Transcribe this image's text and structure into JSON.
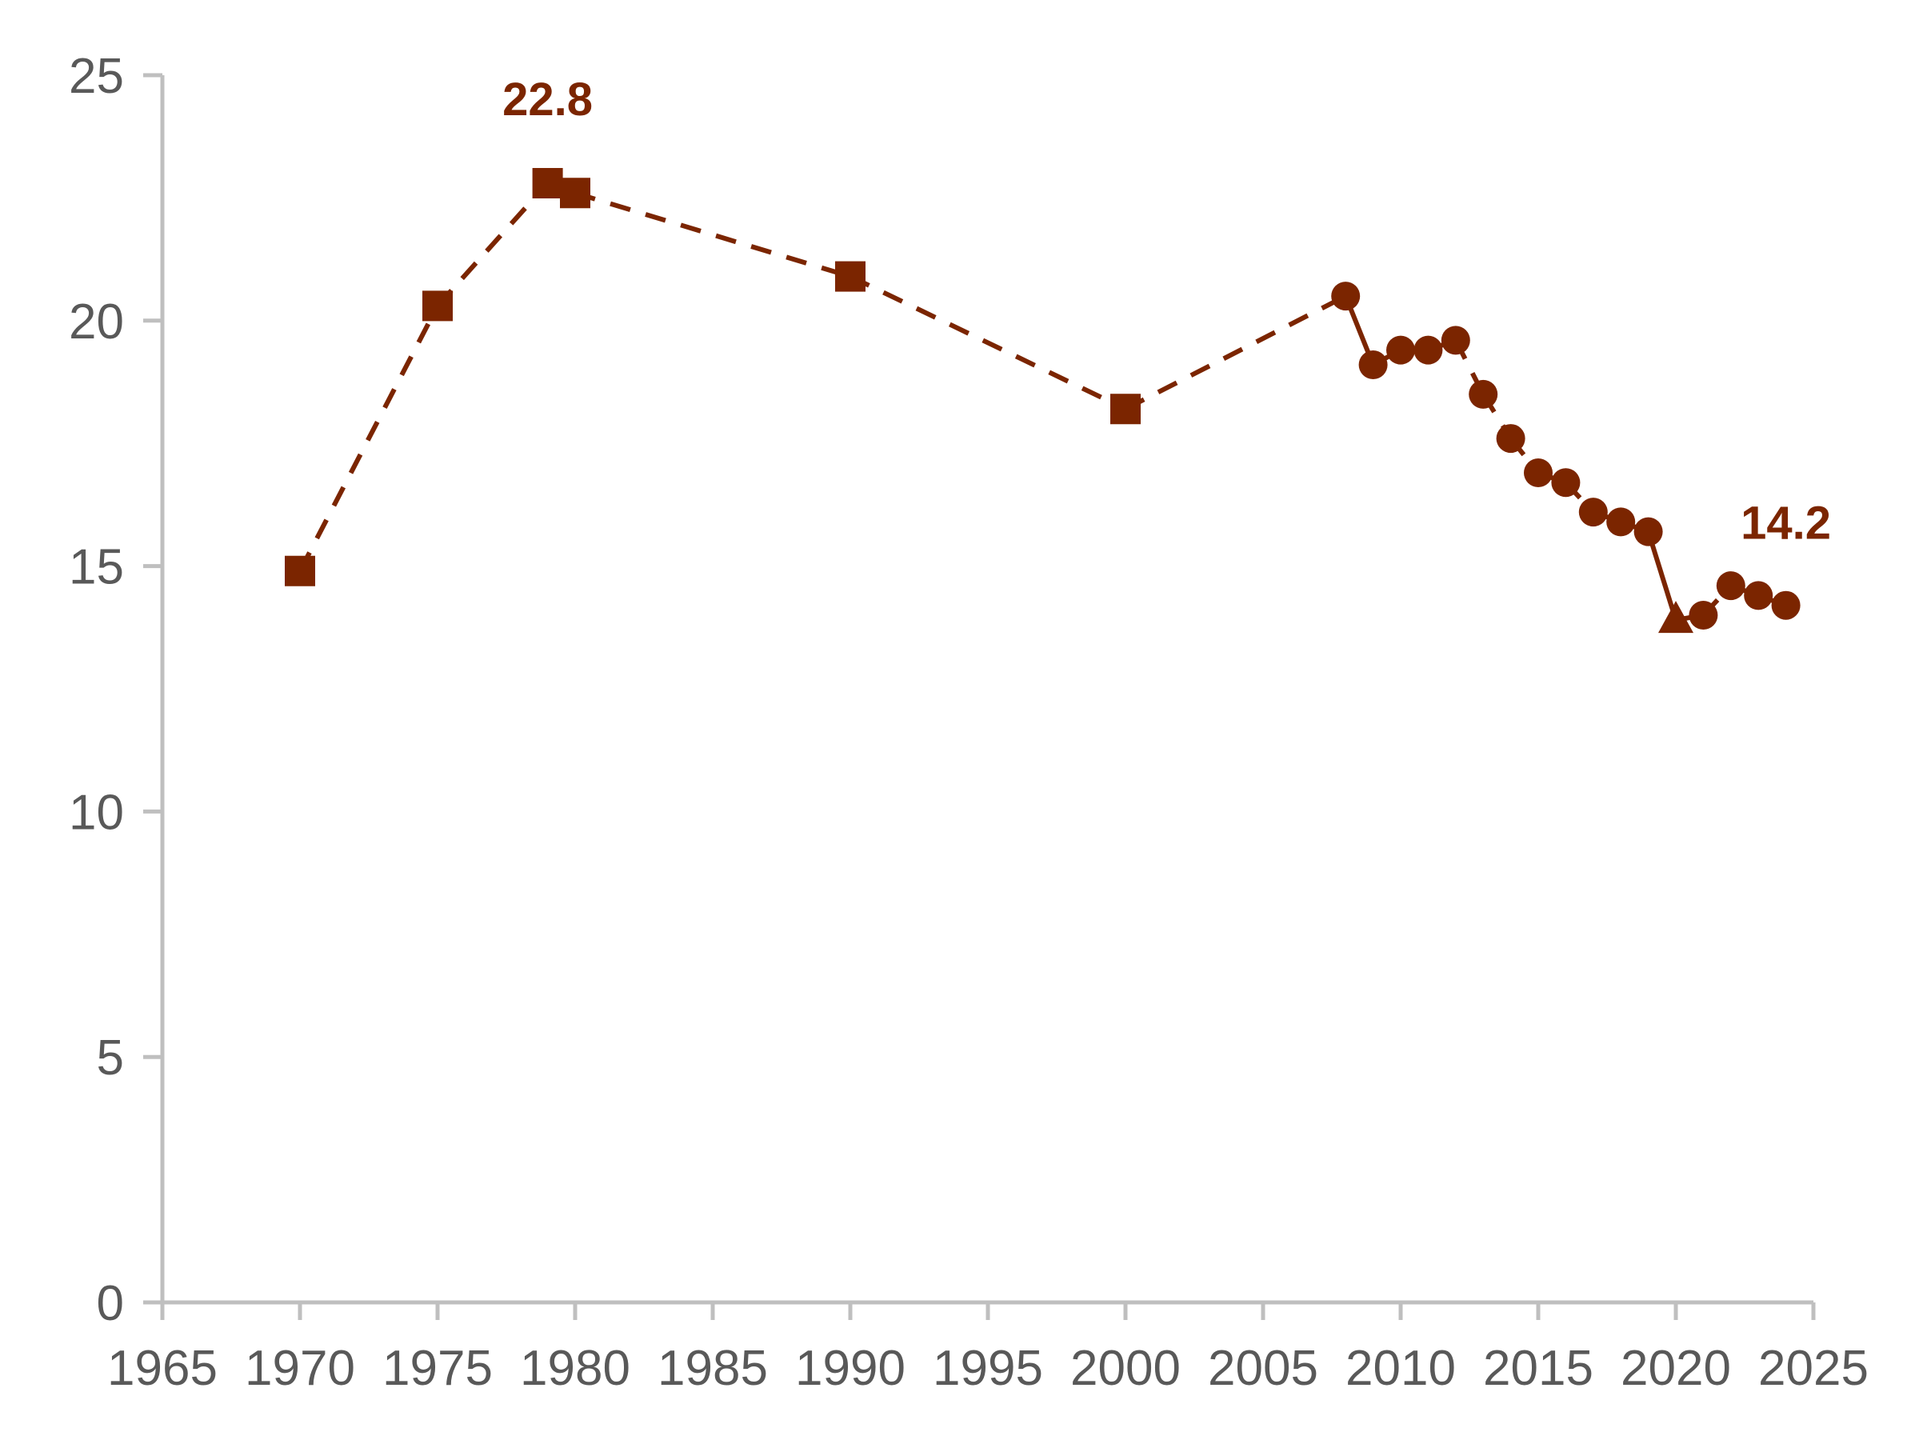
{
  "chart_data": {
    "type": "line",
    "title": "",
    "xlabel": "",
    "ylabel": "",
    "xlim": [
      1965,
      2025
    ],
    "ylim": [
      0,
      25
    ],
    "x_ticks": [
      1965,
      1970,
      1975,
      1980,
      1985,
      1990,
      1995,
      2000,
      2005,
      2010,
      2015,
      2020,
      2025
    ],
    "y_ticks": [
      0,
      5,
      10,
      15,
      20,
      25
    ],
    "grid": false,
    "legend": "none",
    "colors": {
      "series": "#7b2500",
      "axis": "#bfbfbf",
      "tick_text": "#595959"
    },
    "series": [
      {
        "marker": "square",
        "line_style": "dashed",
        "points": [
          {
            "x": 1970,
            "y": 14.9
          },
          {
            "x": 1975,
            "y": 20.3
          },
          {
            "x": 1979,
            "y": 22.8
          },
          {
            "x": 1980,
            "y": 22.6
          },
          {
            "x": 1990,
            "y": 20.9
          },
          {
            "x": 2000,
            "y": 18.2
          }
        ]
      },
      {
        "marker": "circle",
        "line_style": "dashed",
        "points": [
          {
            "x": 2008,
            "y": 20.5
          },
          {
            "x": 2009,
            "y": 19.1
          },
          {
            "x": 2010,
            "y": 19.4
          },
          {
            "x": 2011,
            "y": 19.4
          },
          {
            "x": 2012,
            "y": 19.6
          },
          {
            "x": 2013,
            "y": 18.5
          },
          {
            "x": 2014,
            "y": 17.6
          },
          {
            "x": 2015,
            "y": 16.9
          },
          {
            "x": 2016,
            "y": 16.7
          },
          {
            "x": 2017,
            "y": 16.1
          },
          {
            "x": 2018,
            "y": 15.9
          },
          {
            "x": 2019,
            "y": 15.7
          }
        ]
      },
      {
        "marker": "triangle",
        "line_style": "solid",
        "points": [
          {
            "x": 2020,
            "y": 13.9
          }
        ]
      },
      {
        "marker": "circle",
        "line_style": "dashed",
        "points": [
          {
            "x": 2021,
            "y": 14.0
          },
          {
            "x": 2022,
            "y": 14.6
          },
          {
            "x": 2023,
            "y": 14.4
          },
          {
            "x": 2024,
            "y": 14.2
          }
        ]
      }
    ],
    "annotations": [
      {
        "x": 1979,
        "y": 22.8,
        "text": "22.8"
      },
      {
        "x": 2024,
        "y": 14.2,
        "text": "14.2"
      }
    ]
  }
}
